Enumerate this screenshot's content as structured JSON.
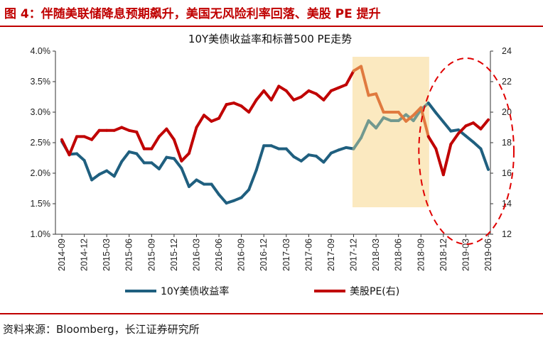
{
  "figure": {
    "label": "图 4：伴随美联储降息预期飙升，美国无风险利率回落、美股 PE 提升",
    "source": "资料来源：Bloomberg，长江证券研究所"
  },
  "colors": {
    "label_red": "#c00000",
    "yield_line": "#1f5f7f",
    "pe_line": "#c00000",
    "highlight_band": "#fbe9c0",
    "highlight_yield": "#72998f",
    "highlight_pe": "#e07a3f",
    "ellipse": "#e00000"
  },
  "chart_data": {
    "type": "line",
    "title": "10Y美债收益率和标普500 PE走势",
    "categories": [
      "2014-09",
      "2014-10",
      "2014-11",
      "2014-12",
      "2015-01",
      "2015-02",
      "2015-03",
      "2015-04",
      "2015-05",
      "2015-06",
      "2015-07",
      "2015-08",
      "2015-09",
      "2015-10",
      "2015-11",
      "2015-12",
      "2016-01",
      "2016-02",
      "2016-03",
      "2016-04",
      "2016-05",
      "2016-06",
      "2016-07",
      "2016-08",
      "2016-09",
      "2016-10",
      "2016-11",
      "2016-12",
      "2017-01",
      "2017-02",
      "2017-03",
      "2017-04",
      "2017-05",
      "2017-06",
      "2017-07",
      "2017-08",
      "2017-09",
      "2017-10",
      "2017-11",
      "2017-12",
      "2018-01",
      "2018-02",
      "2018-03",
      "2018-04",
      "2018-05",
      "2018-06",
      "2018-07",
      "2018-08",
      "2018-09",
      "2018-10",
      "2018-11",
      "2018-12",
      "2019-01",
      "2019-02",
      "2019-03",
      "2019-04",
      "2019-05",
      "2019-06"
    ],
    "x_tick_labels": [
      "2014-09",
      "2014-12",
      "2015-03",
      "2015-06",
      "2015-09",
      "2015-12",
      "2016-03",
      "2016-06",
      "2016-09",
      "2016-12",
      "2017-03",
      "2017-06",
      "2017-09",
      "2017-12",
      "2018-03",
      "2018-06",
      "2018-09",
      "2018-12",
      "2019-03",
      "2019-06"
    ],
    "y_left": {
      "ylim": [
        1.0,
        4.0
      ],
      "ticks": [
        "1.0%",
        "1.5%",
        "2.0%",
        "2.5%",
        "3.0%",
        "3.5%",
        "4.0%"
      ]
    },
    "y_right": {
      "ylim": [
        12,
        24
      ],
      "ticks": [
        "12",
        "14",
        "16",
        "18",
        "20",
        "22",
        "24"
      ]
    },
    "highlight_range": [
      "2017-12",
      "2018-10"
    ],
    "ellipse_range": [
      "2018-11",
      "2019-06"
    ],
    "grid": false,
    "legend_position": "bottom",
    "series": [
      {
        "name": "10Y美债收益率",
        "axis": "left",
        "values": [
          2.52,
          2.31,
          2.32,
          2.21,
          1.89,
          1.98,
          2.04,
          1.95,
          2.19,
          2.35,
          2.32,
          2.17,
          2.17,
          2.07,
          2.26,
          2.24,
          2.08,
          1.78,
          1.89,
          1.82,
          1.82,
          1.65,
          1.51,
          1.55,
          1.6,
          1.73,
          2.05,
          2.45,
          2.45,
          2.4,
          2.4,
          2.27,
          2.2,
          2.3,
          2.28,
          2.18,
          2.33,
          2.38,
          2.42,
          2.4,
          2.58,
          2.86,
          2.74,
          2.91,
          2.86,
          2.86,
          2.96,
          2.86,
          3.04,
          3.15,
          2.99,
          2.84,
          2.69,
          2.71,
          2.61,
          2.51,
          2.4,
          2.06
        ]
      },
      {
        "name": "美股PE(右)",
        "axis": "right",
        "values": [
          18.2,
          17.2,
          18.4,
          18.4,
          18.2,
          18.8,
          18.8,
          18.8,
          19.0,
          18.8,
          18.7,
          17.6,
          17.6,
          18.4,
          18.9,
          18.2,
          16.8,
          17.3,
          19.0,
          19.8,
          19.4,
          19.6,
          20.5,
          20.6,
          20.4,
          20.0,
          20.8,
          21.4,
          20.8,
          21.7,
          21.4,
          20.8,
          21.0,
          21.4,
          21.2,
          20.8,
          21.4,
          21.6,
          21.8,
          22.7,
          23.0,
          21.1,
          21.2,
          20.0,
          20.0,
          20.0,
          19.4,
          19.8,
          20.3,
          18.4,
          17.6,
          15.9,
          17.9,
          18.6,
          19.1,
          19.3,
          18.9,
          19.5
        ]
      }
    ]
  }
}
